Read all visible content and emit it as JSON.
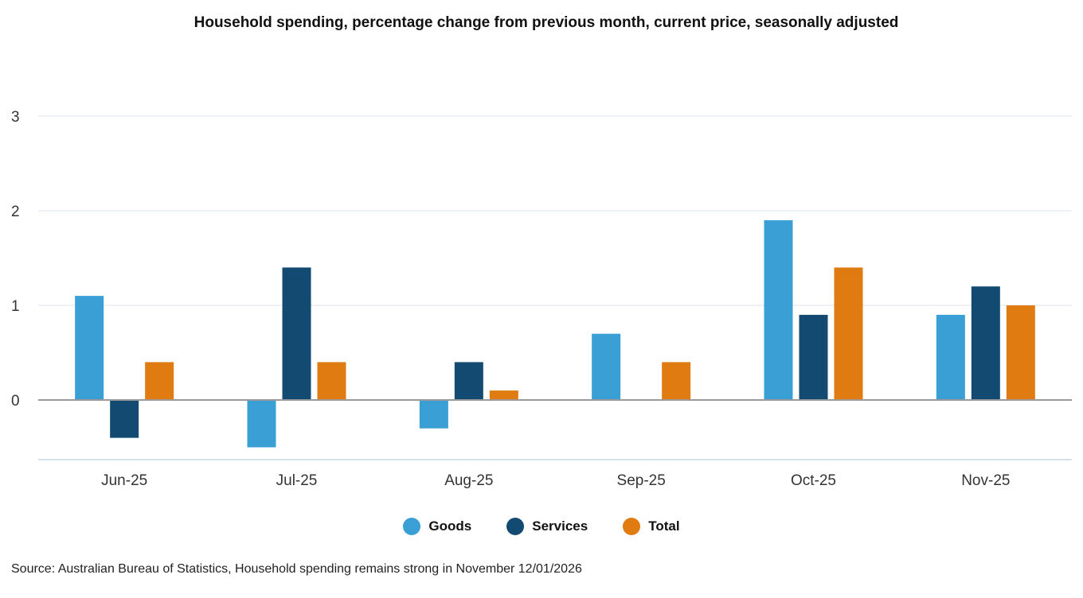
{
  "chart_data": {
    "type": "bar",
    "title": "Household spending, percentage change from previous month, current price, seasonally adjusted",
    "categories": [
      "Jun-25",
      "Jul-25",
      "Aug-25",
      "Sep-25",
      "Oct-25",
      "Nov-25"
    ],
    "series": [
      {
        "name": "Goods",
        "color": "#3a9fd5",
        "values": [
          1.1,
          -0.5,
          -0.3,
          0.7,
          1.9,
          0.9
        ]
      },
      {
        "name": "Services",
        "color": "#134a72",
        "values": [
          -0.4,
          1.4,
          0.4,
          0.0,
          0.9,
          1.2
        ]
      },
      {
        "name": "Total",
        "color": "#e07b12",
        "values": [
          0.4,
          0.4,
          0.1,
          0.4,
          1.4,
          1.0
        ]
      }
    ],
    "yticks": [
      0,
      1,
      2,
      3
    ],
    "ylim": [
      -0.63,
      3
    ],
    "xlabel": "",
    "ylabel": "",
    "grid": true,
    "legend": "bottom",
    "source": "Source: Australian Bureau of Statistics, Household spending remains strong in November 12/01/2026"
  }
}
